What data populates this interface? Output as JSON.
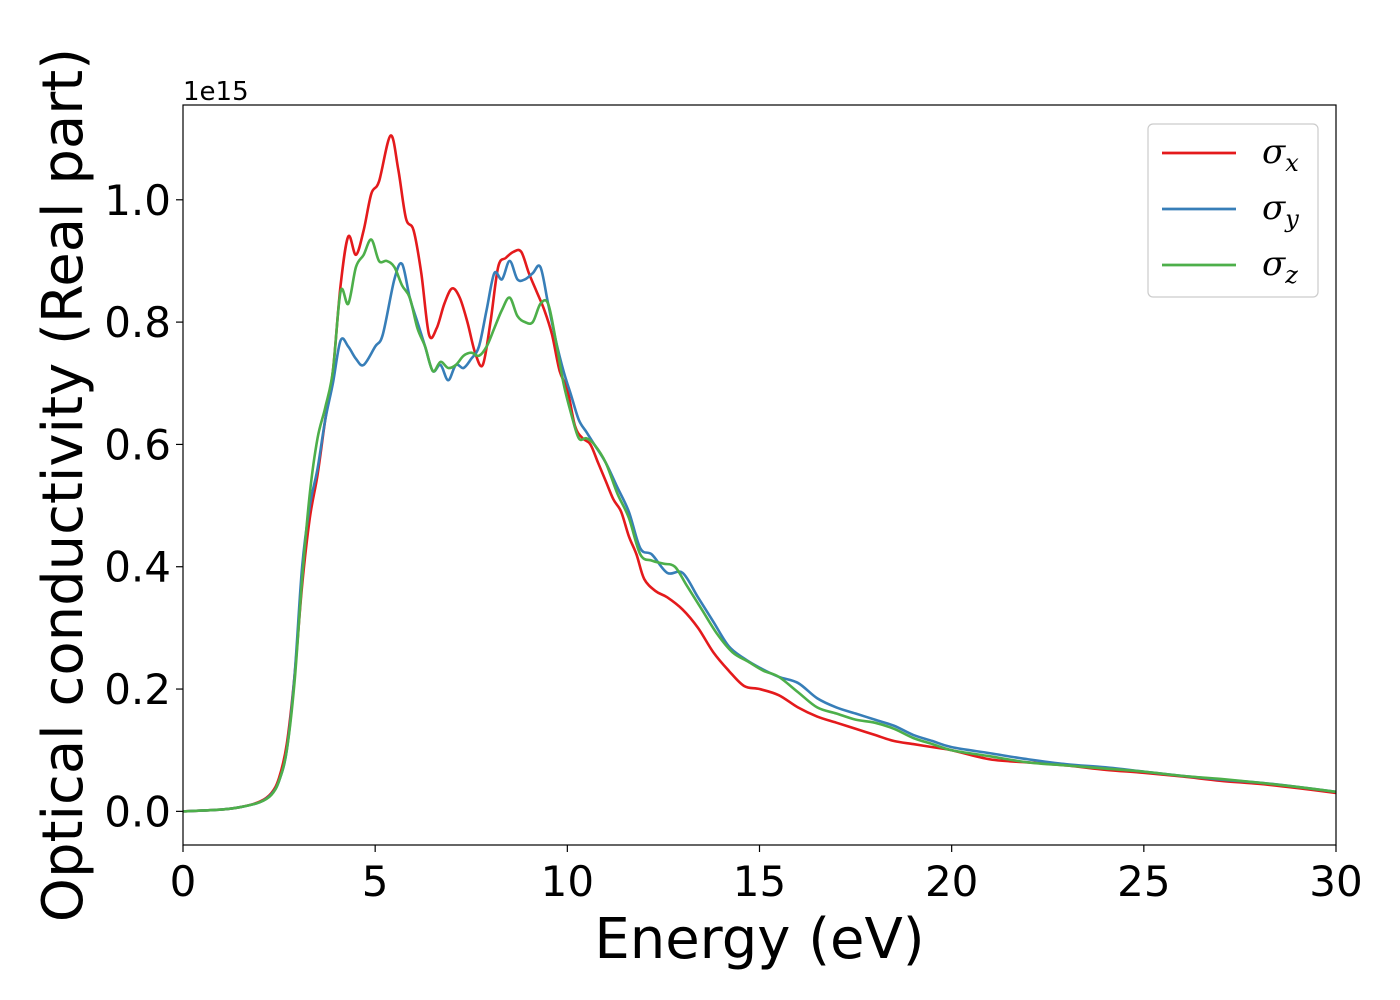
{
  "chart_data": {
    "type": "line",
    "xlabel": "Energy (eV)",
    "ylabel": "Optical conductivity (Real part)",
    "y_offset_label": "1e15",
    "xlim": [
      0,
      30
    ],
    "ylim": [
      -0.055,
      1.155
    ],
    "x_ticks": [
      0,
      5,
      10,
      15,
      20,
      25,
      30
    ],
    "x_tick_labels": [
      "0",
      "5",
      "10",
      "15",
      "20",
      "25",
      "30"
    ],
    "y_ticks": [
      0.0,
      0.2,
      0.4,
      0.6,
      0.8,
      1.0
    ],
    "y_tick_labels": [
      "0.0",
      "0.2",
      "0.4",
      "0.6",
      "0.8",
      "1.0"
    ],
    "grid": false,
    "legend_position": "top-right",
    "series": [
      {
        "name": "σx",
        "symbol": "σ",
        "subscript": "x",
        "color": "#e41a1c",
        "x": [
          0,
          1,
          1.5,
          2,
          2.3,
          2.5,
          2.7,
          2.9,
          3.1,
          3.3,
          3.5,
          3.7,
          3.9,
          4.1,
          4.3,
          4.5,
          4.7,
          4.9,
          5.1,
          5.4,
          5.6,
          5.8,
          6.0,
          6.2,
          6.4,
          6.6,
          6.8,
          7.0,
          7.2,
          7.4,
          7.6,
          7.8,
          8.0,
          8.2,
          8.4,
          8.6,
          8.8,
          9.0,
          9.2,
          9.4,
          9.6,
          9.8,
          10.0,
          10.2,
          10.4,
          10.6,
          10.8,
          11.0,
          11.2,
          11.4,
          11.6,
          11.8,
          12.0,
          12.3,
          12.6,
          13.0,
          13.4,
          13.8,
          14.2,
          14.6,
          15.0,
          15.5,
          16.0,
          16.5,
          17.0,
          17.5,
          18.0,
          18.5,
          19.0,
          19.5,
          20.0,
          21.0,
          22.0,
          23.0,
          24.0,
          25.0,
          26.0,
          27.0,
          28.0,
          29.0,
          30.0
        ],
        "y": [
          0.0,
          0.003,
          0.007,
          0.016,
          0.03,
          0.055,
          0.11,
          0.22,
          0.37,
          0.48,
          0.55,
          0.64,
          0.72,
          0.86,
          0.94,
          0.91,
          0.95,
          1.01,
          1.03,
          1.105,
          1.05,
          0.97,
          0.95,
          0.88,
          0.78,
          0.79,
          0.83,
          0.855,
          0.84,
          0.8,
          0.75,
          0.73,
          0.8,
          0.89,
          0.905,
          0.915,
          0.915,
          0.88,
          0.85,
          0.82,
          0.78,
          0.72,
          0.69,
          0.63,
          0.61,
          0.6,
          0.57,
          0.54,
          0.51,
          0.49,
          0.45,
          0.42,
          0.38,
          0.36,
          0.35,
          0.33,
          0.3,
          0.26,
          0.23,
          0.205,
          0.2,
          0.19,
          0.17,
          0.155,
          0.145,
          0.135,
          0.125,
          0.115,
          0.11,
          0.105,
          0.1,
          0.085,
          0.08,
          0.075,
          0.068,
          0.063,
          0.057,
          0.05,
          0.045,
          0.038,
          0.03
        ]
      },
      {
        "name": "σy",
        "symbol": "σ",
        "subscript": "y",
        "color": "#377eb8",
        "x": [
          0,
          1,
          1.5,
          2,
          2.3,
          2.5,
          2.7,
          2.9,
          3.1,
          3.3,
          3.5,
          3.7,
          3.9,
          4.1,
          4.3,
          4.5,
          4.7,
          5.0,
          5.2,
          5.5,
          5.7,
          5.9,
          6.1,
          6.3,
          6.5,
          6.7,
          6.9,
          7.1,
          7.3,
          7.5,
          7.7,
          7.9,
          8.1,
          8.3,
          8.5,
          8.7,
          8.9,
          9.1,
          9.3,
          9.5,
          9.7,
          9.9,
          10.1,
          10.3,
          10.5,
          10.7,
          11.0,
          11.3,
          11.6,
          11.9,
          12.2,
          12.6,
          13.0,
          13.4,
          13.8,
          14.2,
          14.6,
          15.0,
          15.5,
          16.0,
          16.5,
          17.0,
          17.5,
          18.0,
          18.5,
          19.0,
          19.5,
          20.0,
          21.0,
          22.0,
          23.0,
          24.0,
          25.0,
          26.0,
          27.0,
          28.0,
          29.0,
          30.0
        ],
        "y": [
          0.0,
          0.003,
          0.007,
          0.015,
          0.028,
          0.05,
          0.1,
          0.22,
          0.4,
          0.5,
          0.56,
          0.64,
          0.7,
          0.77,
          0.76,
          0.74,
          0.73,
          0.76,
          0.78,
          0.87,
          0.895,
          0.84,
          0.8,
          0.76,
          0.72,
          0.73,
          0.705,
          0.73,
          0.725,
          0.74,
          0.76,
          0.82,
          0.88,
          0.87,
          0.9,
          0.87,
          0.87,
          0.88,
          0.89,
          0.83,
          0.77,
          0.72,
          0.68,
          0.64,
          0.62,
          0.6,
          0.57,
          0.53,
          0.49,
          0.43,
          0.42,
          0.39,
          0.39,
          0.35,
          0.31,
          0.27,
          0.25,
          0.235,
          0.22,
          0.21,
          0.185,
          0.17,
          0.16,
          0.15,
          0.14,
          0.125,
          0.115,
          0.105,
          0.095,
          0.085,
          0.077,
          0.072,
          0.065,
          0.058,
          0.052,
          0.047,
          0.04,
          0.032
        ]
      },
      {
        "name": "σz",
        "symbol": "σ",
        "subscript": "z",
        "color": "#4daf4a",
        "x": [
          0,
          1,
          1.5,
          2,
          2.3,
          2.5,
          2.7,
          2.9,
          3.1,
          3.3,
          3.5,
          3.7,
          3.9,
          4.1,
          4.3,
          4.5,
          4.7,
          4.9,
          5.1,
          5.3,
          5.5,
          5.7,
          5.9,
          6.1,
          6.3,
          6.5,
          6.7,
          6.9,
          7.1,
          7.3,
          7.5,
          7.7,
          7.9,
          8.1,
          8.3,
          8.5,
          8.7,
          8.9,
          9.1,
          9.3,
          9.5,
          9.7,
          9.9,
          10.1,
          10.3,
          10.5,
          10.7,
          11.0,
          11.3,
          11.6,
          11.9,
          12.2,
          12.5,
          12.8,
          13.1,
          13.5,
          13.9,
          14.3,
          14.7,
          15.1,
          15.5,
          16.0,
          16.5,
          17.0,
          17.5,
          18.0,
          18.5,
          19.0,
          19.5,
          20.0,
          21.0,
          22.0,
          23.0,
          24.0,
          25.0,
          26.0,
          27.0,
          28.0,
          29.0,
          30.0
        ],
        "y": [
          0.0,
          0.003,
          0.007,
          0.015,
          0.027,
          0.05,
          0.1,
          0.21,
          0.38,
          0.52,
          0.61,
          0.66,
          0.72,
          0.85,
          0.83,
          0.89,
          0.91,
          0.935,
          0.9,
          0.9,
          0.89,
          0.86,
          0.84,
          0.79,
          0.76,
          0.72,
          0.735,
          0.725,
          0.73,
          0.745,
          0.75,
          0.745,
          0.76,
          0.79,
          0.82,
          0.84,
          0.81,
          0.8,
          0.8,
          0.83,
          0.83,
          0.77,
          0.7,
          0.65,
          0.61,
          0.61,
          0.6,
          0.57,
          0.52,
          0.48,
          0.42,
          0.41,
          0.405,
          0.4,
          0.37,
          0.33,
          0.29,
          0.26,
          0.245,
          0.23,
          0.22,
          0.195,
          0.17,
          0.16,
          0.15,
          0.145,
          0.135,
          0.12,
          0.11,
          0.1,
          0.09,
          0.08,
          0.075,
          0.07,
          0.065,
          0.058,
          0.053,
          0.047,
          0.04,
          0.032
        ]
      }
    ]
  }
}
